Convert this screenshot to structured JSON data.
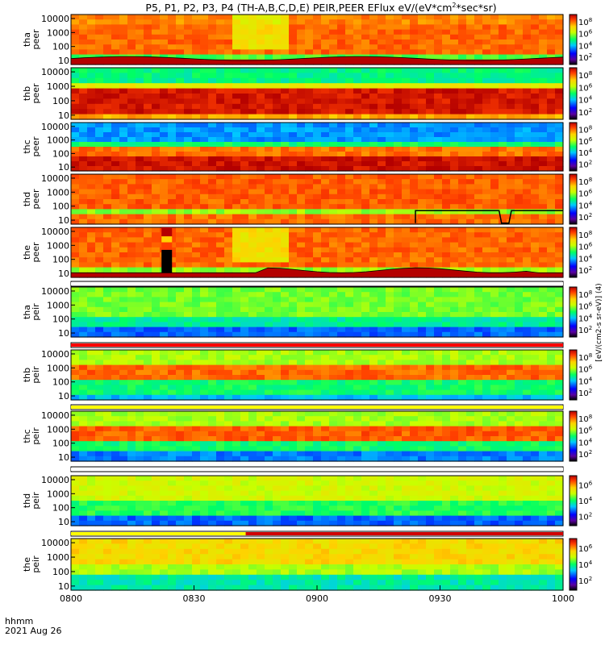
{
  "title": "P5, P1, P2, P3, P4 (TH-A,B,C,D,E) PEIR,PEER EFlux eV/(eV*cm",
  "title_sup": "2",
  "title_end": "*sec*sr)",
  "xaxis": {
    "label_line1": "hhmm",
    "label_line2": "2021 Aug 26",
    "ticks": [
      "0800",
      "0830",
      "0900",
      "0930",
      "1000"
    ]
  },
  "colorbar_label": "[eV/(cm2-s sr-eV)] (4)",
  "chart_data": {
    "type": "heatmap",
    "x_range": [
      "08:00",
      "10:00"
    ],
    "y_scale": "log",
    "y_ticks": [
      "10",
      "100",
      "1000",
      "10000"
    ],
    "colorbar_scale": "log",
    "panels": [
      {
        "probe": "tha",
        "species": "peer",
        "cb_ticks": [
          "2",
          "4",
          "6",
          "8"
        ]
      },
      {
        "probe": "thb",
        "species": "peer",
        "cb_ticks": [
          "2",
          "4",
          "6",
          "8"
        ]
      },
      {
        "probe": "thc",
        "species": "peer",
        "cb_ticks": [
          "2",
          "4",
          "6",
          "8"
        ]
      },
      {
        "probe": "thd",
        "species": "peer",
        "cb_ticks": [
          "2",
          "4",
          "6",
          "8"
        ]
      },
      {
        "probe": "the",
        "species": "peer",
        "cb_ticks": [
          "2",
          "4",
          "6",
          "8"
        ]
      },
      {
        "probe": "tha",
        "species": "peir",
        "cb_ticks": [
          "2",
          "4",
          "6",
          "8"
        ]
      },
      {
        "probe": "thb",
        "species": "peir",
        "cb_ticks": [
          "2",
          "4",
          "6",
          "8"
        ]
      },
      {
        "probe": "thc",
        "species": "peir",
        "cb_ticks": [
          "2",
          "4",
          "6",
          "8"
        ]
      },
      {
        "probe": "thd",
        "species": "peir",
        "cb_ticks": [
          "2",
          "4",
          "6"
        ]
      },
      {
        "probe": "the",
        "species": "peir",
        "cb_ticks": [
          "2",
          "4",
          "6"
        ]
      }
    ]
  }
}
